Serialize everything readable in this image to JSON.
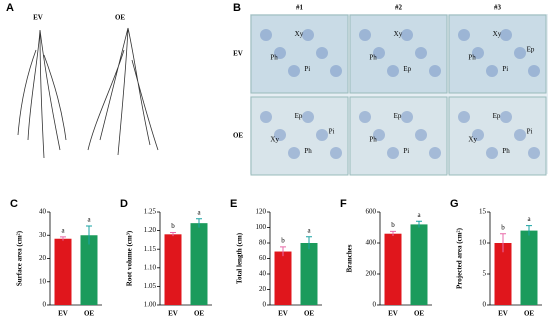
{
  "panels": [
    {
      "label": "A",
      "texts": [
        "EV",
        "OE"
      ]
    },
    {
      "label": "B",
      "columns": [
        "#1",
        "#2",
        "#3"
      ],
      "rows": [
        "EV",
        "OE"
      ],
      "tiles": [
        [
          "Xy",
          "Ph",
          "Pi"
        ],
        [
          "Xy",
          "Ph",
          "Ep"
        ],
        [
          "Xy",
          "Ph",
          "Pi",
          "Ep"
        ],
        [
          "Ep",
          "Xy",
          "Ph",
          "Pi"
        ],
        [
          "Ep",
          "Ph",
          "Pi"
        ],
        [
          "Ep",
          "Xy",
          "Ph",
          "Pi"
        ]
      ]
    }
  ],
  "chart_data": [
    {
      "type": "bar",
      "label": "C",
      "ylabel": "Surface area (cm²)",
      "categories": [
        "EV",
        "OE"
      ],
      "values": [
        28.5,
        30
      ],
      "errors": [
        0.8,
        4
      ],
      "annotations": [
        "a",
        "a"
      ],
      "colors": [
        "#e0161c",
        "#1b9b5c"
      ],
      "ylim": [
        0,
        40
      ],
      "yticks": [
        0,
        10,
        20,
        30,
        40
      ]
    },
    {
      "type": "bar",
      "label": "D",
      "ylabel": "Root volume (cm³)",
      "categories": [
        "EV",
        "OE"
      ],
      "values": [
        1.19,
        1.22
      ],
      "errors": [
        0.005,
        0.012
      ],
      "annotations": [
        "b",
        "a"
      ],
      "colors": [
        "#e0161c",
        "#1b9b5c"
      ],
      "ylim": [
        1.0,
        1.25
      ],
      "yticks": [
        {
          "value": 1.0,
          "label": "1.00"
        },
        {
          "value": 1.05,
          "label": "1.05"
        },
        {
          "value": 1.1,
          "label": "1.10"
        },
        {
          "value": 1.15,
          "label": "1.15"
        },
        {
          "value": 1.2,
          "label": "1.20"
        },
        {
          "value": 1.25,
          "label": "1.25"
        }
      ]
    },
    {
      "type": "bar",
      "label": "E",
      "ylabel": "Total length (cm)",
      "categories": [
        "EV",
        "OE"
      ],
      "values": [
        69,
        80
      ],
      "errors": [
        6,
        8
      ],
      "annotations": [
        "b",
        "a"
      ],
      "colors": [
        "#e0161c",
        "#1b9b5c"
      ],
      "ylim": [
        0,
        120
      ],
      "yticks": [
        0,
        20,
        40,
        60,
        80,
        100,
        120
      ]
    },
    {
      "type": "bar",
      "label": "F",
      "ylabel": "Branches",
      "categories": [
        "EV",
        "OE"
      ],
      "values": [
        460,
        520
      ],
      "errors": [
        15,
        20
      ],
      "annotations": [
        "b",
        "a"
      ],
      "colors": [
        "#e0161c",
        "#1b9b5c"
      ],
      "ylim": [
        0,
        600
      ],
      "yticks": [
        0,
        200,
        400,
        600
      ]
    },
    {
      "type": "bar",
      "label": "G",
      "ylabel": "Projected area (cm²)",
      "categories": [
        "EV",
        "OE"
      ],
      "values": [
        10,
        12
      ],
      "errors": [
        1.5,
        0.8
      ],
      "annotations": [
        "b",
        "a"
      ],
      "colors": [
        "#e0161c",
        "#1b9b5c"
      ],
      "ylim": [
        0,
        15
      ],
      "yticks": [
        0,
        5,
        10,
        15
      ]
    }
  ]
}
